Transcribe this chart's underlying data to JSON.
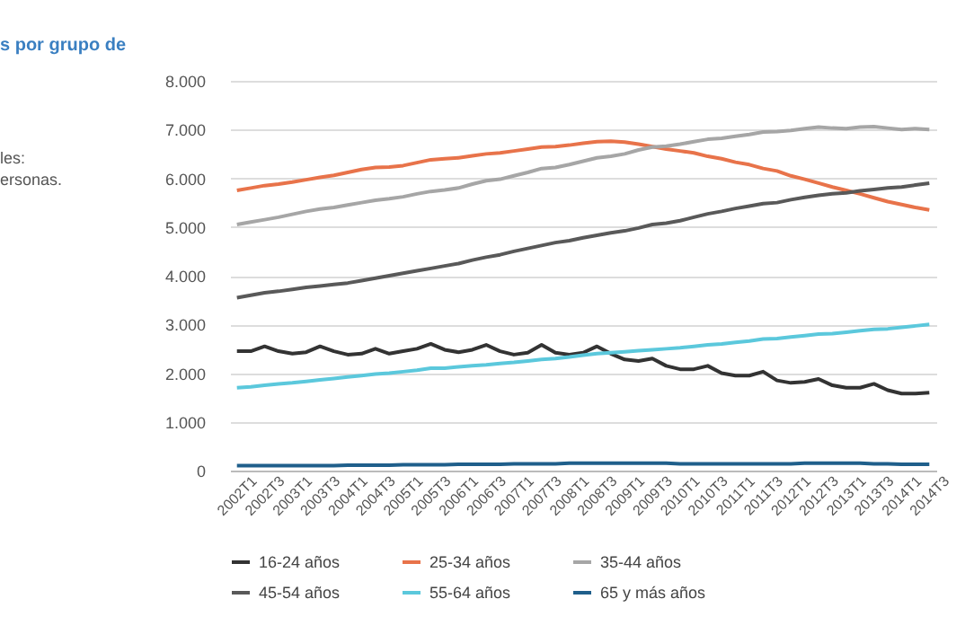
{
  "chart_data": {
    "type": "line",
    "title": "s por grupo de",
    "annotations": [
      "les:",
      "ersonas."
    ],
    "categories": [
      "2002T1",
      null,
      "2002T3",
      null,
      "2003T1",
      null,
      "2003T3",
      null,
      "2004T1",
      null,
      "2004T3",
      null,
      "2005T1",
      null,
      "2005T3",
      null,
      "2006T1",
      null,
      "2006T3",
      null,
      "2007T1",
      null,
      "2007T3",
      null,
      "2008T1",
      null,
      "2008T3",
      null,
      "2009T1",
      null,
      "2009T3",
      null,
      "2010T1",
      null,
      "2010T3",
      null,
      "2011T1",
      null,
      "2011T3",
      null,
      "2012T1",
      null,
      "2012T3",
      null,
      "2013T1",
      null,
      "2013T3",
      null,
      "2014T1",
      null,
      "2014T3"
    ],
    "series": [
      {
        "name": "16-24 años",
        "color": "#333333",
        "values": [
          2450,
          2450,
          2550,
          2450,
          2400,
          2430,
          2550,
          2450,
          2380,
          2400,
          2500,
          2400,
          2450,
          2500,
          2600,
          2480,
          2430,
          2480,
          2580,
          2450,
          2380,
          2420,
          2580,
          2420,
          2380,
          2420,
          2550,
          2400,
          2280,
          2250,
          2300,
          2150,
          2080,
          2080,
          2150,
          2000,
          1950,
          1950,
          2030,
          1850,
          1800,
          1820,
          1880,
          1750,
          1700,
          1700,
          1780,
          1650,
          1580,
          1580,
          1600
        ]
      },
      {
        "name": "25-34 años",
        "color": "#e8734a",
        "values": [
          5750,
          5800,
          5850,
          5880,
          5920,
          5970,
          6020,
          6060,
          6120,
          6180,
          6220,
          6230,
          6260,
          6320,
          6380,
          6400,
          6420,
          6460,
          6500,
          6520,
          6560,
          6600,
          6640,
          6650,
          6680,
          6720,
          6750,
          6760,
          6740,
          6700,
          6650,
          6600,
          6560,
          6520,
          6450,
          6400,
          6330,
          6280,
          6200,
          6150,
          6050,
          5980,
          5900,
          5820,
          5750,
          5680,
          5600,
          5520,
          5460,
          5400,
          5350
        ]
      },
      {
        "name": "35-44 años",
        "color": "#a6a6a6",
        "values": [
          5050,
          5100,
          5150,
          5200,
          5260,
          5320,
          5370,
          5400,
          5450,
          5500,
          5550,
          5580,
          5620,
          5680,
          5730,
          5760,
          5800,
          5880,
          5950,
          5980,
          6050,
          6120,
          6200,
          6220,
          6280,
          6350,
          6420,
          6450,
          6500,
          6580,
          6640,
          6660,
          6700,
          6750,
          6800,
          6820,
          6860,
          6900,
          6950,
          6960,
          6980,
          7020,
          7050,
          7030,
          7020,
          7050,
          7060,
          7030,
          7000,
          7020,
          7000
        ]
      },
      {
        "name": "45-54 años",
        "color": "#595959",
        "values": [
          3550,
          3600,
          3650,
          3680,
          3720,
          3760,
          3790,
          3820,
          3850,
          3900,
          3950,
          4000,
          4050,
          4100,
          4150,
          4200,
          4250,
          4320,
          4380,
          4430,
          4500,
          4560,
          4620,
          4680,
          4720,
          4780,
          4830,
          4880,
          4920,
          4980,
          5050,
          5080,
          5130,
          5200,
          5270,
          5320,
          5380,
          5430,
          5480,
          5500,
          5560,
          5610,
          5650,
          5680,
          5700,
          5740,
          5770,
          5800,
          5820,
          5860,
          5900
        ]
      },
      {
        "name": "55-64 años",
        "color": "#5bc8dc",
        "values": [
          1700,
          1720,
          1750,
          1780,
          1800,
          1830,
          1860,
          1890,
          1920,
          1950,
          1980,
          2000,
          2030,
          2060,
          2100,
          2100,
          2130,
          2150,
          2170,
          2200,
          2220,
          2250,
          2280,
          2300,
          2330,
          2370,
          2400,
          2420,
          2440,
          2460,
          2480,
          2500,
          2520,
          2550,
          2580,
          2600,
          2630,
          2660,
          2700,
          2710,
          2740,
          2770,
          2800,
          2810,
          2840,
          2870,
          2900,
          2910,
          2940,
          2970,
          3000
        ]
      },
      {
        "name": "65 y más años",
        "color": "#1f5f8b",
        "values": [
          100,
          100,
          100,
          100,
          100,
          100,
          100,
          100,
          110,
          110,
          110,
          110,
          120,
          120,
          120,
          120,
          130,
          130,
          130,
          130,
          140,
          140,
          140,
          140,
          150,
          150,
          150,
          150,
          150,
          150,
          150,
          150,
          140,
          140,
          140,
          140,
          140,
          140,
          140,
          140,
          140,
          150,
          150,
          150,
          150,
          150,
          140,
          140,
          130,
          130,
          130
        ]
      }
    ],
    "ylim": [
      0,
      8000
    ],
    "yticks": [
      0,
      {
        "value": 1000,
        "label": "1.000"
      },
      {
        "value": 2000,
        "label": "2.000"
      },
      {
        "value": 3000,
        "label": "3.000"
      },
      {
        "value": 4000,
        "label": "4.000"
      },
      {
        "value": 5000,
        "label": "5.000"
      },
      {
        "value": 6000,
        "label": "6.000"
      },
      {
        "value": 7000,
        "label": "7.000"
      },
      {
        "value": 8000,
        "label": "8.000"
      }
    ],
    "grid": "y",
    "legend": "bottom",
    "marker": "none",
    "line_style": "solid"
  }
}
